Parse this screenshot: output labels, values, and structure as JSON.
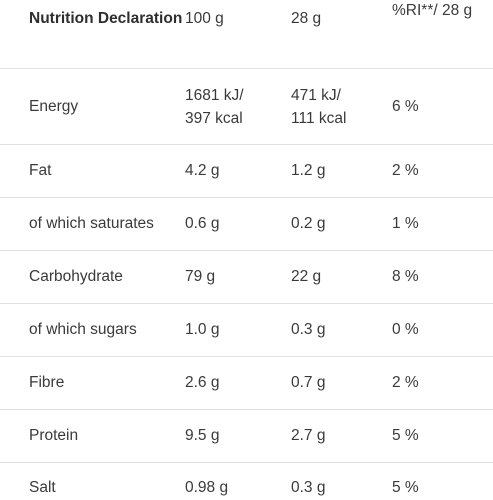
{
  "table": {
    "header": {
      "label": "Nutrition Declaration",
      "col_100g": "100 g",
      "col_28g": "28 g",
      "col_ri": "%RI**/  28 g"
    },
    "rows": [
      {
        "name": "Energy",
        "per_100g": "1681 kJ/\n397 kcal",
        "per_28g": "471 kJ/\n111 kcal",
        "ri": "6 %"
      },
      {
        "name": "Fat",
        "per_100g": "4.2 g",
        "per_28g": "1.2 g",
        "ri": "2 %"
      },
      {
        "name": "of which saturates",
        "per_100g": "0.6 g",
        "per_28g": "0.2 g",
        "ri": "1 %"
      },
      {
        "name": "Carbohydrate",
        "per_100g": "79 g",
        "per_28g": "22 g",
        "ri": "8 %"
      },
      {
        "name": "of which sugars",
        "per_100g": "1.0 g",
        "per_28g": "0.3 g",
        "ri": "0 %"
      },
      {
        "name": "Fibre",
        "per_100g": "2.6 g",
        "per_28g": "0.7 g",
        "ri": "2 %"
      },
      {
        "name": "Protein",
        "per_100g": "9.5 g",
        "per_28g": "2.7 g",
        "ri": "5 %"
      },
      {
        "name": "Salt",
        "per_100g": "0.98 g",
        "per_28g": "0.3 g",
        "ri": "5 %"
      }
    ]
  }
}
